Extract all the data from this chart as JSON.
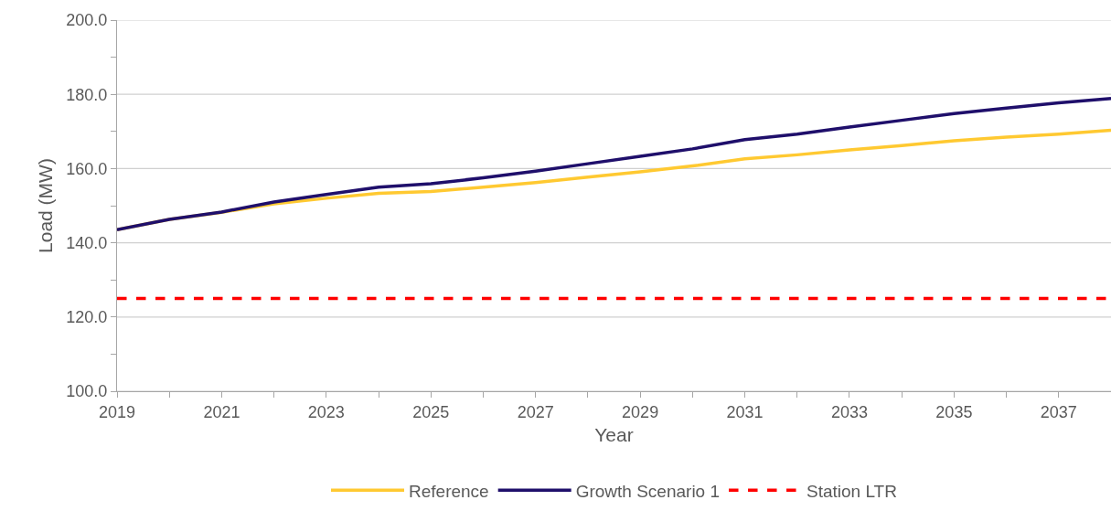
{
  "chart_data": {
    "type": "line",
    "xlabel": "Year",
    "ylabel": "Load (MW)",
    "x": [
      2019,
      2020,
      2021,
      2022,
      2023,
      2024,
      2025,
      2026,
      2027,
      2028,
      2029,
      2030,
      2031,
      2032,
      2033,
      2034,
      2035,
      2036,
      2037,
      2038
    ],
    "series": [
      {
        "name": "Reference",
        "color": "#ffc931",
        "values": [
          143.5,
          146.3,
          148.2,
          150.5,
          152.0,
          153.3,
          153.8,
          155.0,
          156.2,
          157.7,
          159.1,
          160.7,
          162.6,
          163.7,
          165.0,
          166.2,
          167.5,
          168.5,
          169.3,
          170.3
        ]
      },
      {
        "name": "Growth Scenario 1",
        "color": "#1f0f6b",
        "values": [
          143.5,
          146.3,
          148.3,
          151.0,
          153.0,
          155.0,
          155.9,
          157.5,
          159.3,
          161.3,
          163.3,
          165.3,
          167.8,
          169.3,
          171.2,
          173.0,
          174.8,
          176.3,
          177.7,
          178.9
        ]
      }
    ],
    "ref_lines": [
      {
        "axis": "y",
        "value": 125,
        "label": "Station LTR",
        "color": "#ff0000",
        "line_style": "dashed"
      }
    ],
    "xlim": [
      2019,
      2038
    ],
    "xticks": [
      2019,
      {
        "value": 2020,
        "label": null
      },
      2021,
      {
        "value": 2022,
        "label": null
      },
      2023,
      {
        "value": 2024,
        "label": null
      },
      2025,
      {
        "value": 2026,
        "label": null
      },
      2027,
      {
        "value": 2028,
        "label": null
      },
      2029,
      {
        "value": 2030,
        "label": null
      },
      2031,
      {
        "value": 2032,
        "label": null
      },
      2033,
      {
        "value": 2034,
        "label": null
      },
      2035,
      {
        "value": 2036,
        "label": null
      },
      2037,
      {
        "value": 2038,
        "label": null
      }
    ],
    "ylim": [
      100,
      200
    ],
    "yticks": [
      {
        "value": 100,
        "label": "100.0"
      },
      {
        "value": 110,
        "label": null
      },
      {
        "value": 120,
        "label": "120.0"
      },
      {
        "value": 130,
        "label": null
      },
      {
        "value": 140,
        "label": "140.0"
      },
      {
        "value": 150,
        "label": null
      },
      {
        "value": 160,
        "label": "160.0"
      },
      {
        "value": 170,
        "label": null
      },
      {
        "value": 180,
        "label": "180.0"
      },
      {
        "value": 190,
        "label": null
      },
      {
        "value": 200,
        "label": "200.0"
      }
    ],
    "grid": "y",
    "legend": "bottom",
    "marker": "none",
    "line_style": "solid"
  }
}
